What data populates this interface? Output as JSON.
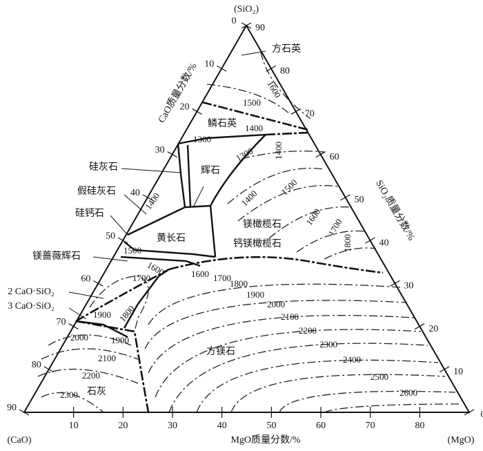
{
  "vertices": {
    "top": "(SiO₂)",
    "left": "(CaO)",
    "right": "(MgO)"
  },
  "axes": {
    "bottom": {
      "title": "MgO质量分数/%",
      "ticks": [
        10,
        20,
        30,
        40,
        50,
        60,
        70,
        80
      ]
    },
    "left": {
      "title": "CaO质量分数/%",
      "ticks": [
        0,
        10,
        20,
        30,
        40,
        50,
        60,
        70,
        80,
        90
      ]
    },
    "right": {
      "title": "SiO₂质量分数/%",
      "ticks": [
        0,
        10,
        20,
        30,
        40,
        50,
        60,
        70,
        80,
        90
      ]
    }
  },
  "phases": [
    "方石英",
    "鳞石英",
    "辉石",
    "硅灰石",
    "假硅灰石",
    "硅钙石",
    "黄长石",
    "镁橄榄石",
    "钙镁橄榄石",
    "镁蔷薇辉石",
    "2 CaO·SiO₂",
    "3 CaO·SiO₂",
    "方镁石",
    "石灰"
  ],
  "isotherms": [
    1500,
    1600,
    1400,
    1300,
    1300,
    1400,
    1400,
    1400,
    1500,
    1600,
    1700,
    1800,
    1500,
    1600,
    1700,
    1600,
    1700,
    1800,
    1900,
    2000,
    2100,
    2200,
    2300,
    2400,
    2500,
    2600,
    1900,
    1800,
    2000,
    1900,
    2100,
    2200,
    2300
  ]
}
